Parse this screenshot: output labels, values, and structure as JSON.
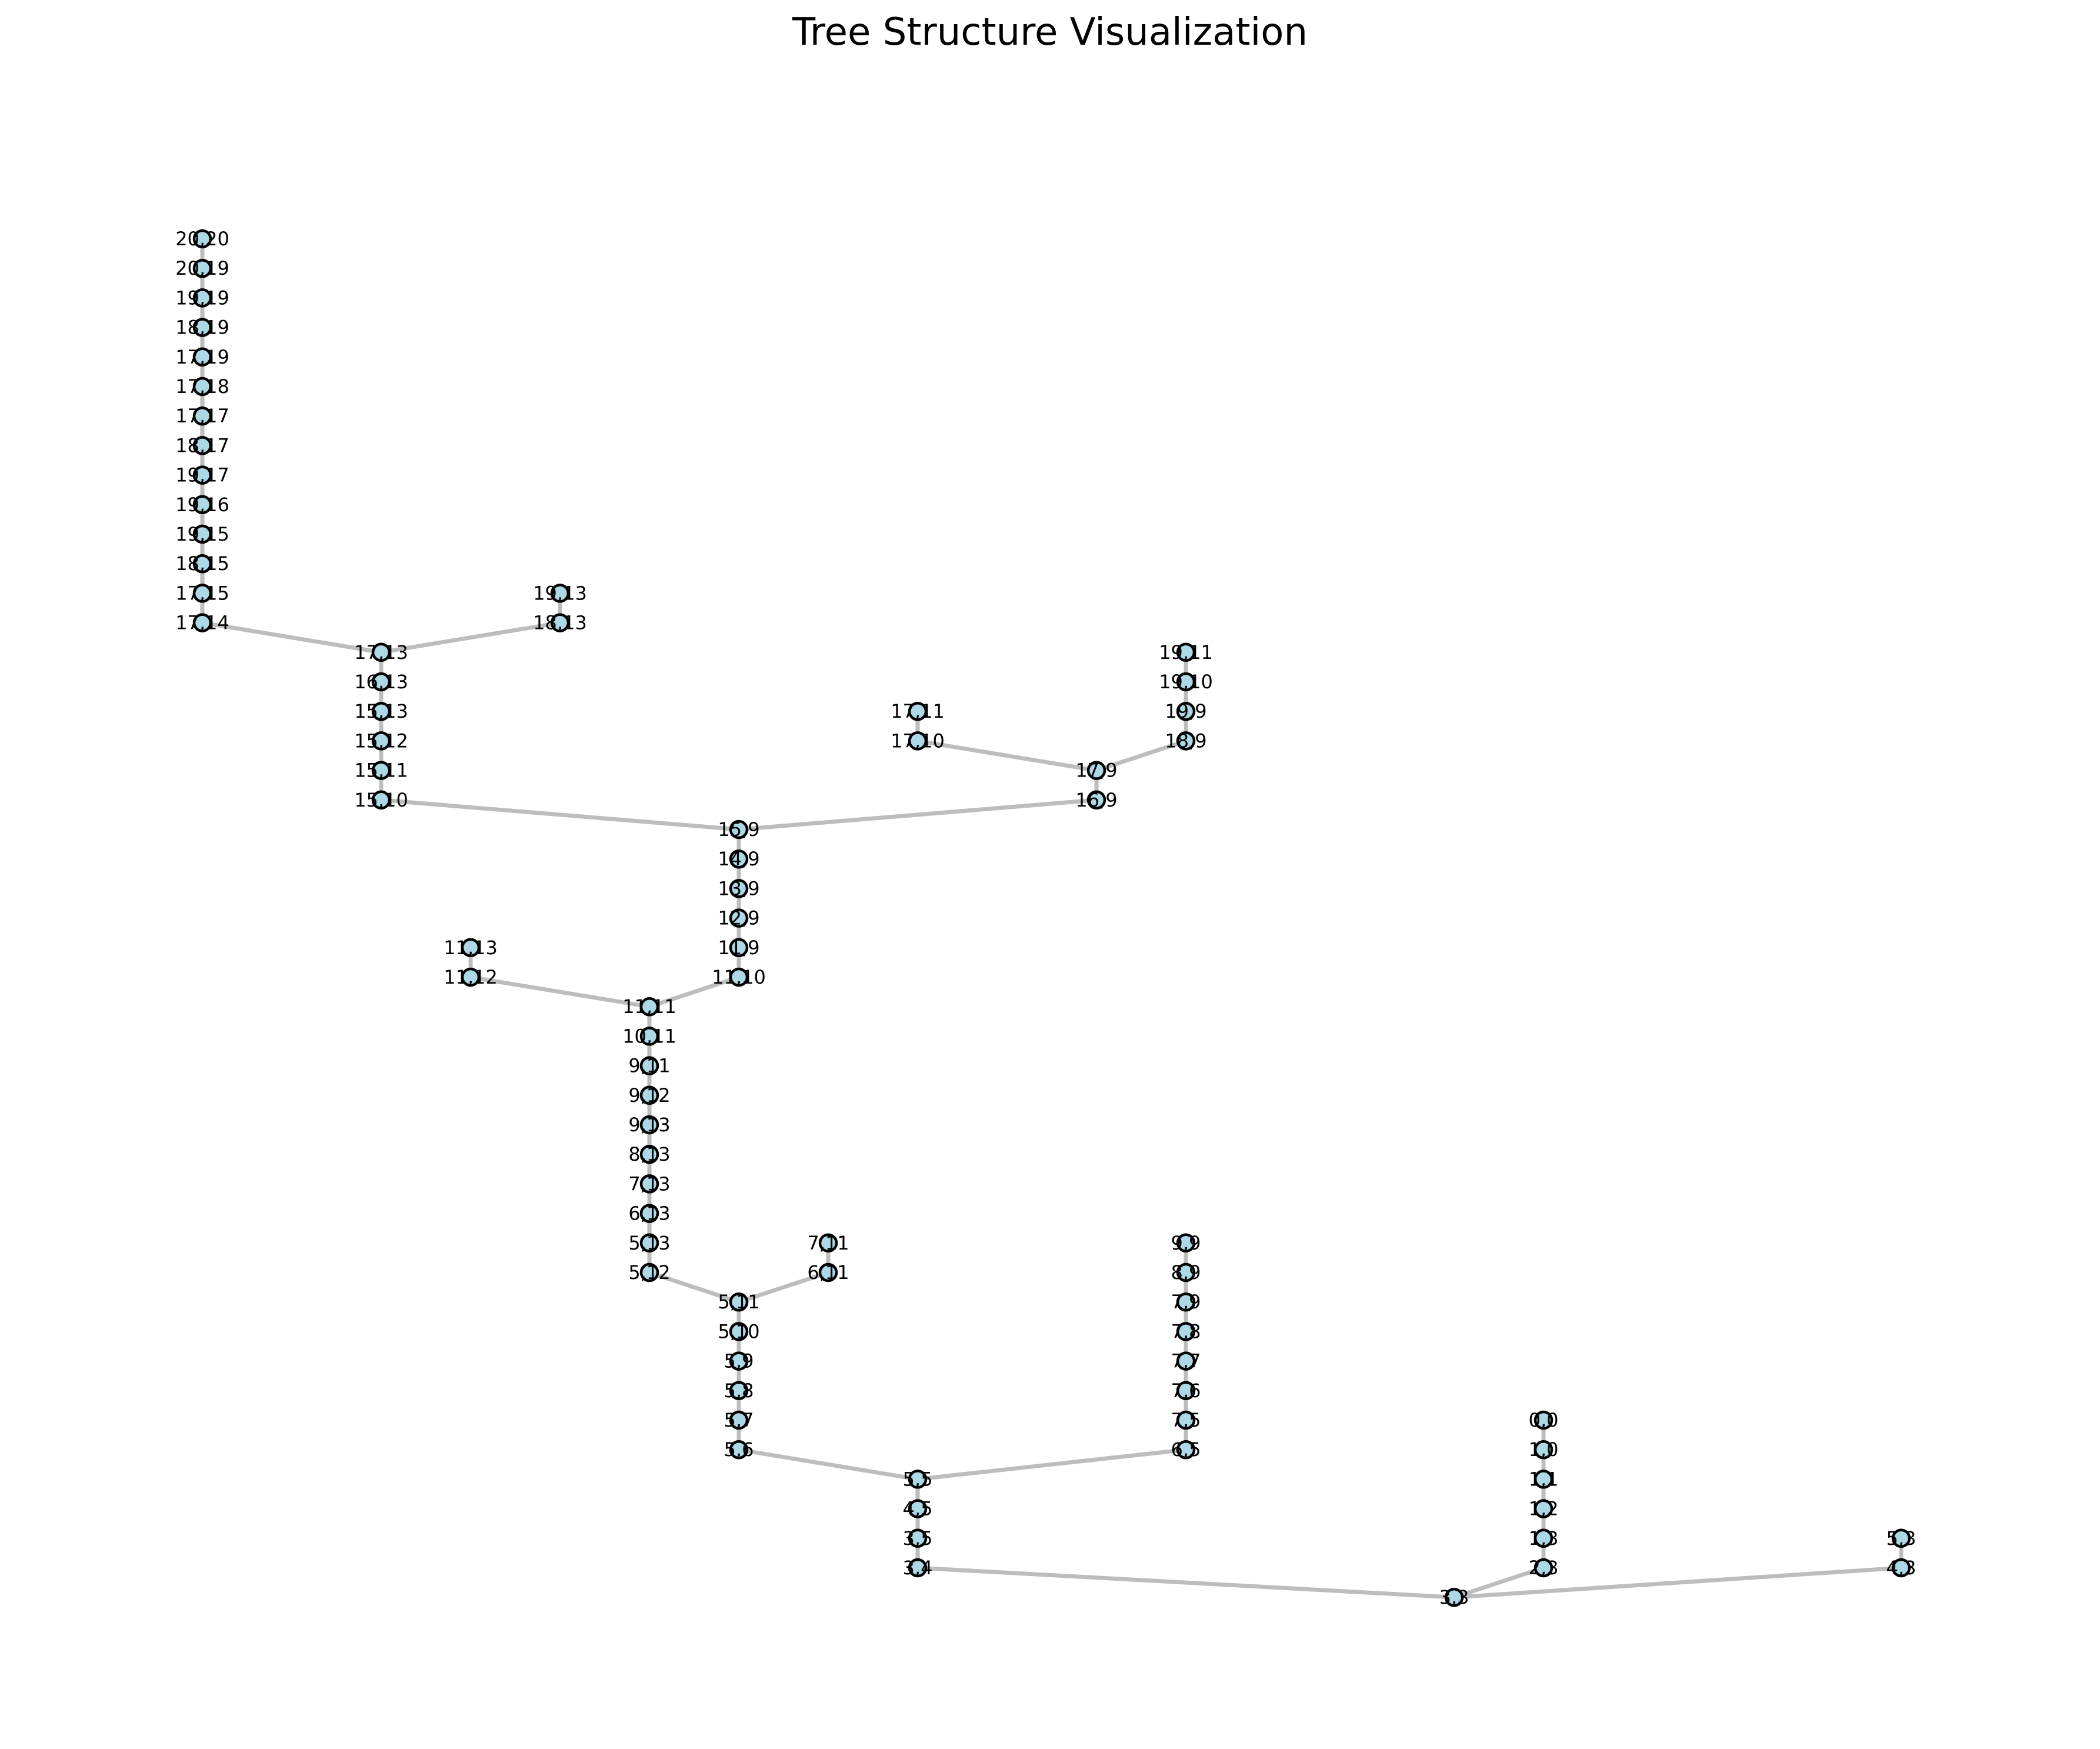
{
  "title": "Tree Structure Visualization",
  "colors": {
    "node_fill": "#add8e6",
    "node_stroke": "#000000",
    "edge": "#bdbdbd",
    "label": "#000000"
  },
  "nodes": [
    "20,20",
    "20,19",
    "19,19",
    "18,19",
    "17,19",
    "17,18",
    "17,17",
    "18,17",
    "19,17",
    "19,16",
    "19,15",
    "18,15",
    "17,15",
    "17,14",
    "17,13",
    "16,13",
    "15,13",
    "15,12",
    "15,11",
    "15,10",
    "19,13",
    "18,13",
    "17,11",
    "17,10",
    "17,9",
    "16,9",
    "19,11",
    "19,10",
    "19,9",
    "18,9",
    "15,9",
    "14,9",
    "13,9",
    "12,9",
    "11,9",
    "11,10",
    "11,13",
    "11,12",
    "11,11",
    "10,11",
    "9,11",
    "9,12",
    "9,13",
    "8,13",
    "7,13",
    "6,13",
    "5,13",
    "5,12",
    "7,11",
    "6,11",
    "5,11",
    "5,10",
    "5,9",
    "5,8",
    "5,7",
    "5,6",
    "9,9",
    "8,9",
    "7,9",
    "7,8",
    "7,7",
    "7,6",
    "7,5",
    "6,5",
    "5,5",
    "4,5",
    "3,5",
    "3,4",
    "0,0",
    "1,0",
    "1,1",
    "1,2",
    "1,3",
    "2,3",
    "5,3",
    "4,3",
    "3,3"
  ],
  "edges": [
    [
      "20,20",
      "20,19"
    ],
    [
      "20,19",
      "19,19"
    ],
    [
      "19,19",
      "18,19"
    ],
    [
      "18,19",
      "17,19"
    ],
    [
      "17,19",
      "17,18"
    ],
    [
      "17,18",
      "17,17"
    ],
    [
      "17,17",
      "18,17"
    ],
    [
      "18,17",
      "19,17"
    ],
    [
      "19,17",
      "19,16"
    ],
    [
      "19,16",
      "19,15"
    ],
    [
      "19,15",
      "18,15"
    ],
    [
      "18,15",
      "17,15"
    ],
    [
      "17,15",
      "17,14"
    ],
    [
      "17,14",
      "17,13"
    ],
    [
      "19,13",
      "18,13"
    ],
    [
      "18,13",
      "17,13"
    ],
    [
      "17,13",
      "16,13"
    ],
    [
      "16,13",
      "15,13"
    ],
    [
      "15,13",
      "15,12"
    ],
    [
      "15,12",
      "15,11"
    ],
    [
      "15,11",
      "15,10"
    ],
    [
      "15,10",
      "15,9"
    ],
    [
      "17,11",
      "17,10"
    ],
    [
      "17,10",
      "17,9"
    ],
    [
      "19,11",
      "19,10"
    ],
    [
      "19,10",
      "19,9"
    ],
    [
      "19,9",
      "18,9"
    ],
    [
      "18,9",
      "17,9"
    ],
    [
      "17,9",
      "16,9"
    ],
    [
      "16,9",
      "15,9"
    ],
    [
      "15,9",
      "14,9"
    ],
    [
      "14,9",
      "13,9"
    ],
    [
      "13,9",
      "12,9"
    ],
    [
      "12,9",
      "11,9"
    ],
    [
      "11,9",
      "11,10"
    ],
    [
      "11,10",
      "11,11"
    ],
    [
      "11,13",
      "11,12"
    ],
    [
      "11,12",
      "11,11"
    ],
    [
      "11,11",
      "10,11"
    ],
    [
      "10,11",
      "9,11"
    ],
    [
      "9,11",
      "9,12"
    ],
    [
      "9,12",
      "9,13"
    ],
    [
      "9,13",
      "8,13"
    ],
    [
      "8,13",
      "7,13"
    ],
    [
      "7,13",
      "6,13"
    ],
    [
      "6,13",
      "5,13"
    ],
    [
      "5,13",
      "5,12"
    ],
    [
      "5,12",
      "5,11"
    ],
    [
      "7,11",
      "6,11"
    ],
    [
      "6,11",
      "5,11"
    ],
    [
      "5,11",
      "5,10"
    ],
    [
      "5,10",
      "5,9"
    ],
    [
      "5,9",
      "5,8"
    ],
    [
      "5,8",
      "5,7"
    ],
    [
      "5,7",
      "5,6"
    ],
    [
      "5,6",
      "5,5"
    ],
    [
      "9,9",
      "8,9"
    ],
    [
      "8,9",
      "7,9"
    ],
    [
      "7,9",
      "7,8"
    ],
    [
      "7,8",
      "7,7"
    ],
    [
      "7,7",
      "7,6"
    ],
    [
      "7,6",
      "7,5"
    ],
    [
      "7,5",
      "6,5"
    ],
    [
      "6,5",
      "5,5"
    ],
    [
      "5,5",
      "4,5"
    ],
    [
      "4,5",
      "3,5"
    ],
    [
      "3,5",
      "3,4"
    ],
    [
      "3,4",
      "3,3"
    ],
    [
      "0,0",
      "1,0"
    ],
    [
      "1,0",
      "1,1"
    ],
    [
      "1,1",
      "1,2"
    ],
    [
      "1,2",
      "1,3"
    ],
    [
      "1,3",
      "2,3"
    ],
    [
      "2,3",
      "3,3"
    ],
    [
      "5,3",
      "4,3"
    ],
    [
      "4,3",
      "3,3"
    ]
  ]
}
